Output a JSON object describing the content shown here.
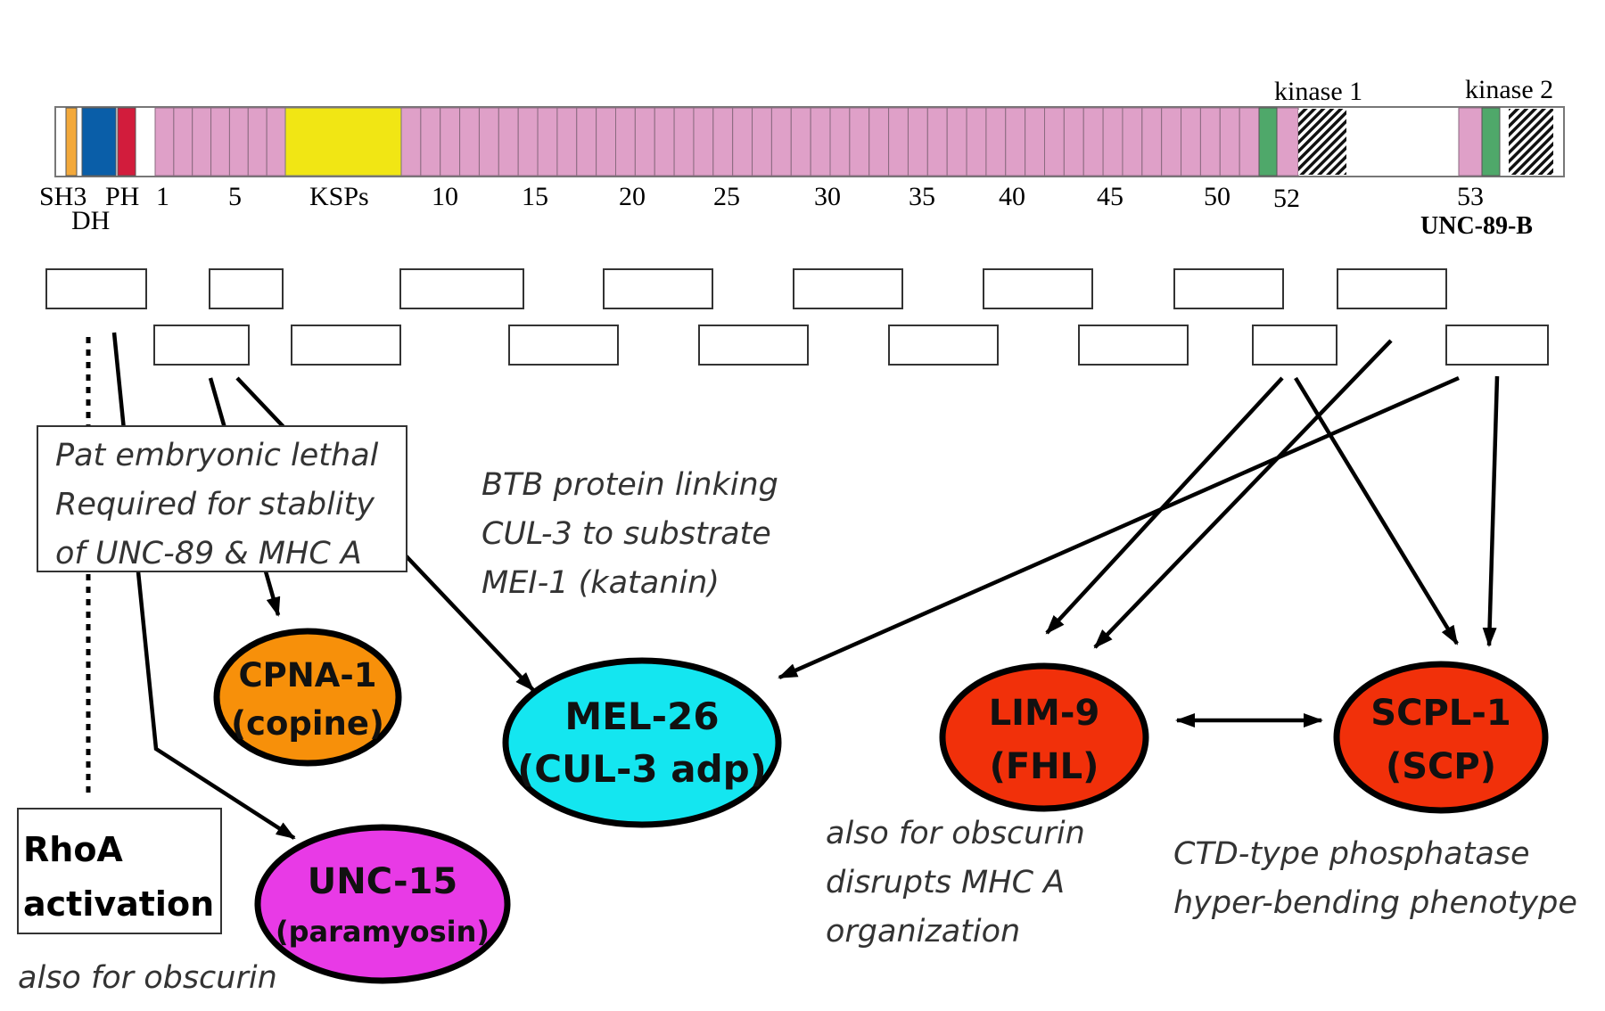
{
  "domain_bar": {
    "labels": {
      "kinase1": "kinase 1",
      "kinase2": "kinase 2",
      "sh3": "SH3",
      "ph": "PH",
      "dh": "DH",
      "n1": "1",
      "n5": "5",
      "ksps": "KSPs",
      "n10": "10",
      "n15": "15",
      "n20": "20",
      "n25": "25",
      "n30": "30",
      "n35": "35",
      "n40": "40",
      "n45": "45",
      "n50": "50",
      "n52": "52",
      "n53": "53",
      "isoform": "UNC-89-B"
    },
    "colors": {
      "ig": "#dfa0c8",
      "sh3": "#f3a93b",
      "dh": "#0a5ea8",
      "ph": "#d21c3c",
      "ksps": "#f1e614",
      "kinase": "#4fa86a"
    }
  },
  "notes": {
    "pat_lethal": [
      "Pat embryonic lethal",
      "Required for stablity",
      "of UNC-89 & MHC A"
    ],
    "btb": [
      "BTB protein linking",
      "CUL-3 to substrate",
      "MEI-1 (katanin)"
    ],
    "rhoa": [
      "RhoA",
      "activation"
    ],
    "unc15_note": "also for obscurin",
    "lim9_note": [
      "also for obscurin",
      "disrupts MHC A",
      "organization"
    ],
    "scpl1_note": [
      "CTD-type phosphatase",
      "hyper-bending phenotype"
    ]
  },
  "nodes": {
    "cpna1": {
      "line1": "CPNA-1",
      "line2": "(copine)",
      "color": "#f7900a"
    },
    "mel26": {
      "line1": "MEL-26",
      "line2": "(CUL-3 adp)",
      "color": "#14e6f0"
    },
    "lim9": {
      "line1": "LIM-9",
      "line2": "(FHL)",
      "color": "#f1300a"
    },
    "scpl1": {
      "line1": "SCPL-1",
      "line2": "(SCP)",
      "color": "#f1300a"
    },
    "unc15": {
      "line1": "UNC-15",
      "line2": "(paramyosin)",
      "color": "#e83ae6"
    }
  }
}
